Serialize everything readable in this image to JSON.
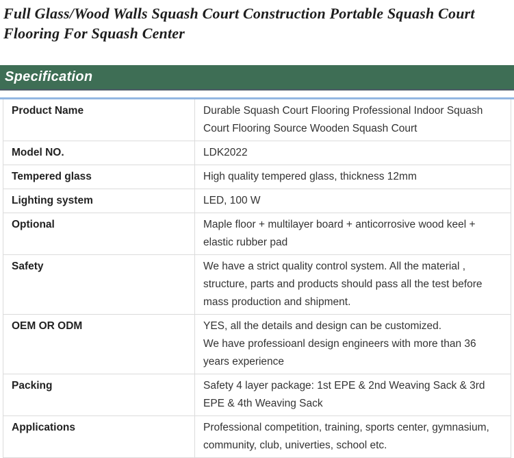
{
  "page": {
    "title": "Full Glass/Wood Walls Squash Court Construction Portable Squash Court Flooring For Squash Center"
  },
  "section": {
    "heading": "Specification"
  },
  "colors": {
    "title_text": "#1e1e1e",
    "section_header_bg": "#3e6e55",
    "section_header_text": "#ffffff",
    "section_header_underline": "#4d5a68",
    "table_top_border": "#92b7e3",
    "table_cell_border": "#dbdbdb",
    "label_text": "#222222",
    "value_text": "#333333"
  },
  "spec_table": {
    "rows": [
      {
        "label": "Product Name",
        "value": "Durable Squash Court Flooring Professional Indoor Squash Court Flooring Source Wooden Squash Court"
      },
      {
        "label": "Model NO.",
        "value": "LDK2022"
      },
      {
        "label": "Tempered glass",
        "value": "High quality tempered glass, thickness 12mm"
      },
      {
        "label": "Lighting system",
        "value": "LED, 100 W"
      },
      {
        "label": "Optional",
        "value": "Maple floor + multilayer board + anticorrosive wood keel + elastic rubber pad"
      },
      {
        "label": "Safety",
        "value": "We have a strict quality control system. All the material , structure, parts and products should pass all the test before mass production and shipment."
      },
      {
        "label": "OEM OR ODM",
        "value": "YES, all the details and design can be customized.\nWe have professioanl design engineers with more than 36 years experience"
      },
      {
        "label": "Packing",
        "value": "Safety 4 layer package: 1st EPE & 2nd Weaving Sack & 3rd EPE & 4th Weaving Sack"
      },
      {
        "label": "Applications",
        "value": "Professional competition, training, sports center, gymnasium, community, club, univerties, school etc."
      }
    ]
  }
}
